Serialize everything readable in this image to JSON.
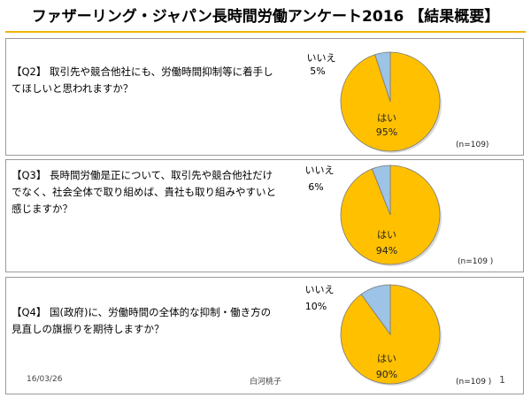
{
  "title": "ファザーリング・ジャパン長時間労働アンケート2016 【結果概要】",
  "footer": {
    "date": "16/03/26",
    "author": "白河桃子",
    "page": "1"
  },
  "colors": {
    "yes": "#FFC000",
    "no": "#9DC3E6",
    "border": "#7a7a7a"
  },
  "chart_data": [
    {
      "type": "pie",
      "question": "【Q2】 取引先や競合他社にも、労働時間抑制等に着手してほしいと思われますか？",
      "labels": [
        "はい",
        "いいえ"
      ],
      "values": [
        95,
        5
      ],
      "pct_labels": [
        "95%",
        "5%"
      ],
      "n": "(n=109)"
    },
    {
      "type": "pie",
      "question": "【Q3】 長時間労働是正について、取引先や競合他社だけでなく、社会全体で取り組めば、貴社も取り組みやすいと感じますか？",
      "labels": [
        "はい",
        "いいえ"
      ],
      "values": [
        94,
        6
      ],
      "pct_labels": [
        "94%",
        "6%"
      ],
      "n": "(n=109 )"
    },
    {
      "type": "pie",
      "question": "【Q4】 国(政府)に、労働時間の全体的な抑制・働き方の見直しの旗振りを期待しますか？",
      "labels": [
        "はい",
        "いいえ"
      ],
      "values": [
        90,
        10
      ],
      "pct_labels": [
        "90%",
        "10%"
      ],
      "n": "(n=109 )"
    }
  ]
}
